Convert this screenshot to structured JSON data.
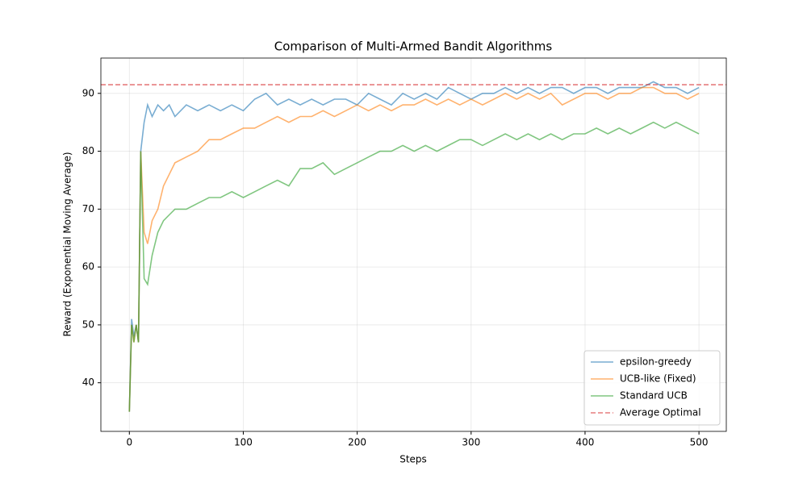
{
  "chart_data": {
    "type": "line",
    "title": "Comparison of Multi-Armed Bandit Algorithms",
    "xlabel": "Steps",
    "ylabel": "Reward (Exponential Moving Average)",
    "x": [
      0,
      2,
      4,
      6,
      8,
      10,
      13,
      16,
      20,
      25,
      30,
      35,
      40,
      50,
      60,
      70,
      80,
      90,
      100,
      110,
      120,
      130,
      140,
      150,
      160,
      170,
      180,
      190,
      200,
      210,
      220,
      230,
      240,
      250,
      260,
      270,
      280,
      290,
      300,
      310,
      320,
      330,
      340,
      350,
      360,
      370,
      380,
      390,
      400,
      410,
      420,
      430,
      440,
      450,
      460,
      470,
      480,
      490,
      500
    ],
    "series": [
      {
        "name": "epsilon-greedy",
        "color": "#1f77b4",
        "values": [
          35,
          51,
          48,
          50,
          47,
          80,
          85,
          88,
          86,
          88,
          87,
          88,
          86,
          88,
          87,
          88,
          87,
          88,
          87,
          89,
          90,
          88,
          89,
          88,
          89,
          88,
          89,
          89,
          88,
          90,
          89,
          88,
          90,
          89,
          90,
          89,
          91,
          90,
          89,
          90,
          90,
          91,
          90,
          91,
          90,
          91,
          91,
          90,
          91,
          91,
          90,
          91,
          91,
          91,
          92,
          91,
          91,
          90,
          91
        ]
      },
      {
        "name": "UCB-like (Fixed)",
        "color": "#ff7f0e",
        "values": [
          35,
          50,
          47,
          50,
          47,
          80,
          66,
          64,
          68,
          70,
          74,
          76,
          78,
          79,
          80,
          82,
          82,
          83,
          84,
          84,
          85,
          86,
          85,
          86,
          86,
          87,
          86,
          87,
          88,
          87,
          88,
          87,
          88,
          88,
          89,
          88,
          89,
          88,
          89,
          88,
          89,
          90,
          89,
          90,
          89,
          90,
          88,
          89,
          90,
          90,
          89,
          90,
          90,
          91,
          91,
          90,
          90,
          89,
          90
        ]
      },
      {
        "name": "Standard UCB",
        "color": "#2ca02c",
        "values": [
          35,
          50,
          47,
          50,
          47,
          80,
          58,
          57,
          62,
          66,
          68,
          69,
          70,
          70,
          71,
          72,
          72,
          73,
          72,
          73,
          74,
          75,
          74,
          77,
          77,
          78,
          76,
          77,
          78,
          79,
          80,
          80,
          81,
          80,
          81,
          80,
          81,
          82,
          82,
          81,
          82,
          83,
          82,
          83,
          82,
          83,
          82,
          83,
          83,
          84,
          83,
          84,
          83,
          84,
          85,
          84,
          85,
          84,
          83
        ]
      }
    ],
    "reference_line": {
      "name": "Average Optimal",
      "value": 91.5,
      "color": "#d62728"
    },
    "xlim": [
      -25,
      524
    ],
    "ylim": [
      31.6,
      96.1
    ],
    "xticks": [
      0,
      100,
      200,
      300,
      400,
      500
    ],
    "yticks": [
      40,
      50,
      60,
      70,
      80,
      90
    ],
    "grid": true,
    "legend": "lower right"
  }
}
